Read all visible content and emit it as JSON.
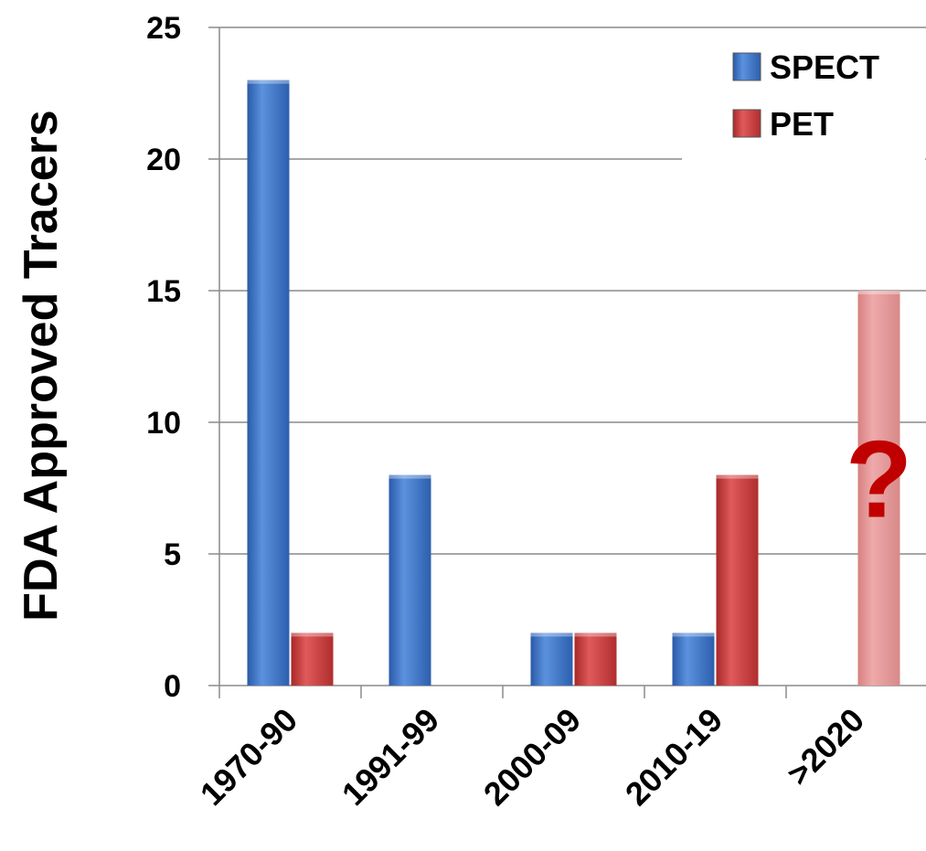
{
  "chart_data": {
    "type": "bar",
    "ylabel": "FDA Approved Tracers",
    "xlabel": "",
    "categories": [
      "1970-90",
      "1991-99",
      "2000-09",
      "2010-19",
      ">2020"
    ],
    "ylim": [
      0,
      25
    ],
    "yticks": [
      0,
      5,
      10,
      15,
      20,
      25
    ],
    "grid": true,
    "legend_position": "top-right",
    "series": [
      {
        "name": "SPECT",
        "color": "#3a73c6",
        "values": [
          23,
          8,
          2,
          2,
          null
        ]
      },
      {
        "name": "PET",
        "color": "#c83a3a",
        "values": [
          2,
          null,
          2,
          8,
          15
        ]
      }
    ],
    "projected": {
      "category": ">2020",
      "series": "PET",
      "color": "#e09090"
    },
    "annotation": {
      "text": "?",
      "category": ">2020",
      "color": "#c00000"
    }
  }
}
